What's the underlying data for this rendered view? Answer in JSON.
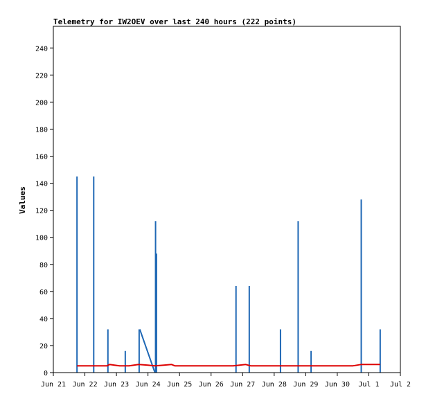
{
  "chart_data": {
    "type": "line",
    "title": "Telemetry for IW2OEV over last 240 hours (222 points)",
    "xlabel": "",
    "ylabel": "Values",
    "ylim": [
      0,
      256
    ],
    "yticks": [
      0,
      20,
      40,
      60,
      80,
      100,
      120,
      140,
      160,
      180,
      200,
      220,
      240
    ],
    "xlim": [
      0,
      11
    ],
    "xticks": [
      {
        "x": 0,
        "label": "Jun 21"
      },
      {
        "x": 1,
        "label": "Jun 22"
      },
      {
        "x": 2,
        "label": "Jun 23"
      },
      {
        "x": 3,
        "label": "Jun 24"
      },
      {
        "x": 4,
        "label": "Jun 25"
      },
      {
        "x": 5,
        "label": "Jun 26"
      },
      {
        "x": 6,
        "label": "Jun 27"
      },
      {
        "x": 7,
        "label": "Jun 28"
      },
      {
        "x": 8,
        "label": "Jun 29"
      },
      {
        "x": 9,
        "label": "Jun 30"
      },
      {
        "x": 10,
        "label": "Jul 1"
      },
      {
        "x": 11,
        "label": "Jul 2"
      }
    ],
    "grid": false,
    "legend": "none",
    "colors": {
      "blue": "#1f68b5",
      "red": "#dd0000",
      "axis": "#000000"
    },
    "series": [
      {
        "color": "#1f68b5",
        "style": "spikes",
        "points": [
          [
            0.75,
            145
          ],
          [
            1.28,
            145
          ],
          [
            1.73,
            32
          ],
          [
            2.28,
            16
          ],
          [
            2.72,
            32
          ],
          [
            3.22,
            0
          ],
          [
            3.24,
            112
          ],
          [
            3.27,
            88
          ],
          [
            5.79,
            64
          ],
          [
            6.21,
            64
          ],
          [
            7.2,
            32
          ],
          [
            7.76,
            112
          ],
          [
            8.17,
            16
          ],
          [
            9.76,
            128
          ],
          [
            10.36,
            32
          ]
        ],
        "segments": [
          {
            "from": [
              2.74,
              32
            ],
            "to": [
              3.22,
              0
            ]
          }
        ]
      },
      {
        "color": "#dd0000",
        "style": "line",
        "points": [
          [
            0.75,
            5
          ],
          [
            1.7,
            5
          ],
          [
            1.78,
            6
          ],
          [
            2.1,
            5
          ],
          [
            2.4,
            5
          ],
          [
            2.7,
            6
          ],
          [
            3.0,
            5.5
          ],
          [
            3.22,
            5
          ],
          [
            3.5,
            5.5
          ],
          [
            3.75,
            6
          ],
          [
            3.85,
            5
          ],
          [
            5.7,
            5
          ],
          [
            5.9,
            5.5
          ],
          [
            6.1,
            6
          ],
          [
            6.25,
            5
          ],
          [
            9.5,
            5
          ],
          [
            9.75,
            6
          ],
          [
            10.36,
            6
          ]
        ]
      }
    ]
  }
}
